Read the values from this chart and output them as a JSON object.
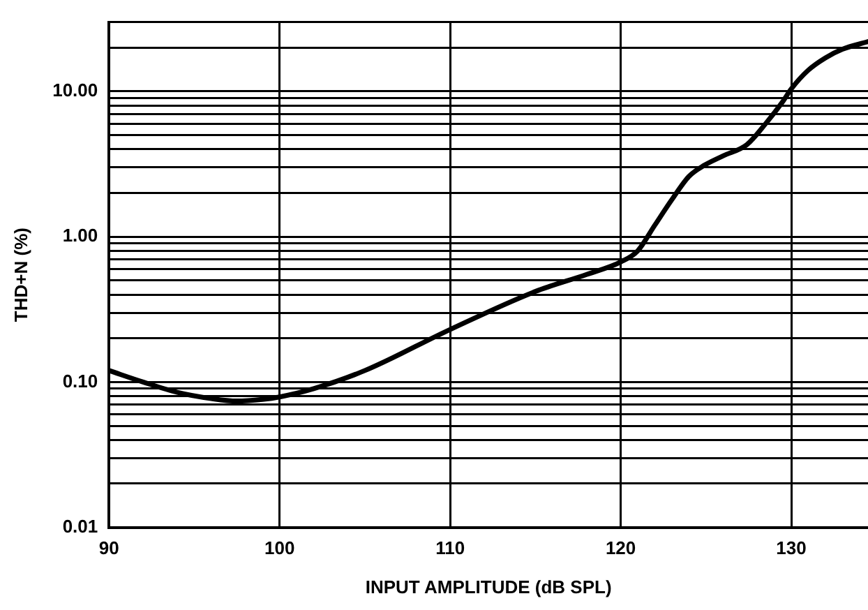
{
  "chart_data": {
    "type": "line",
    "xlabel": "INPUT AMPLITUDE (dB SPL)",
    "ylabel": "THD+N (%)",
    "log": "y",
    "grid": true,
    "legend": false,
    "marker": "none",
    "line_style": "solid",
    "xlim": [
      90,
      134.5
    ],
    "xticks": [
      90,
      100,
      110,
      120,
      130
    ],
    "ylim": [
      0.01,
      30
    ],
    "yticks": [
      {
        "value": 0.01,
        "label": "0.01"
      },
      {
        "value": 0.02,
        "label": null
      },
      {
        "value": 0.03,
        "label": null
      },
      {
        "value": 0.04,
        "label": null
      },
      {
        "value": 0.05,
        "label": null
      },
      {
        "value": 0.06,
        "label": null
      },
      {
        "value": 0.07,
        "label": null
      },
      {
        "value": 0.08,
        "label": null
      },
      {
        "value": 0.09,
        "label": null
      },
      {
        "value": 0.1,
        "label": "0.10"
      },
      {
        "value": 0.2,
        "label": null
      },
      {
        "value": 0.3,
        "label": null
      },
      {
        "value": 0.4,
        "label": null
      },
      {
        "value": 0.5,
        "label": null
      },
      {
        "value": 0.6,
        "label": null
      },
      {
        "value": 0.7,
        "label": null
      },
      {
        "value": 0.8,
        "label": null
      },
      {
        "value": 0.9,
        "label": null
      },
      {
        "value": 1,
        "label": "1.00"
      },
      {
        "value": 2,
        "label": null
      },
      {
        "value": 3,
        "label": null
      },
      {
        "value": 4,
        "label": null
      },
      {
        "value": 5,
        "label": null
      },
      {
        "value": 6,
        "label": null
      },
      {
        "value": 7,
        "label": null
      },
      {
        "value": 8,
        "label": null
      },
      {
        "value": 9,
        "label": null
      },
      {
        "value": 10,
        "label": "10.00"
      },
      {
        "value": 20,
        "label": null
      },
      {
        "value": 30,
        "label": null
      }
    ],
    "x": [
      90,
      92,
      94,
      96,
      97.5,
      99,
      100,
      102,
      105,
      110,
      115,
      118,
      120,
      121,
      122,
      123,
      124,
      124.9,
      126,
      127.4,
      128.5,
      129.5,
      130,
      131,
      132,
      133,
      134.5
    ],
    "series": [
      {
        "color": "#000000",
        "values": [
          0.12,
          0.1,
          0.085,
          0.077,
          0.074,
          0.076,
          0.079,
          0.09,
          0.12,
          0.23,
          0.42,
          0.55,
          0.67,
          0.8,
          1.2,
          1.8,
          2.6,
          3.1,
          3.6,
          4.3,
          6,
          8.5,
          10.4,
          14,
          17,
          19.5,
          22
        ]
      }
    ]
  }
}
